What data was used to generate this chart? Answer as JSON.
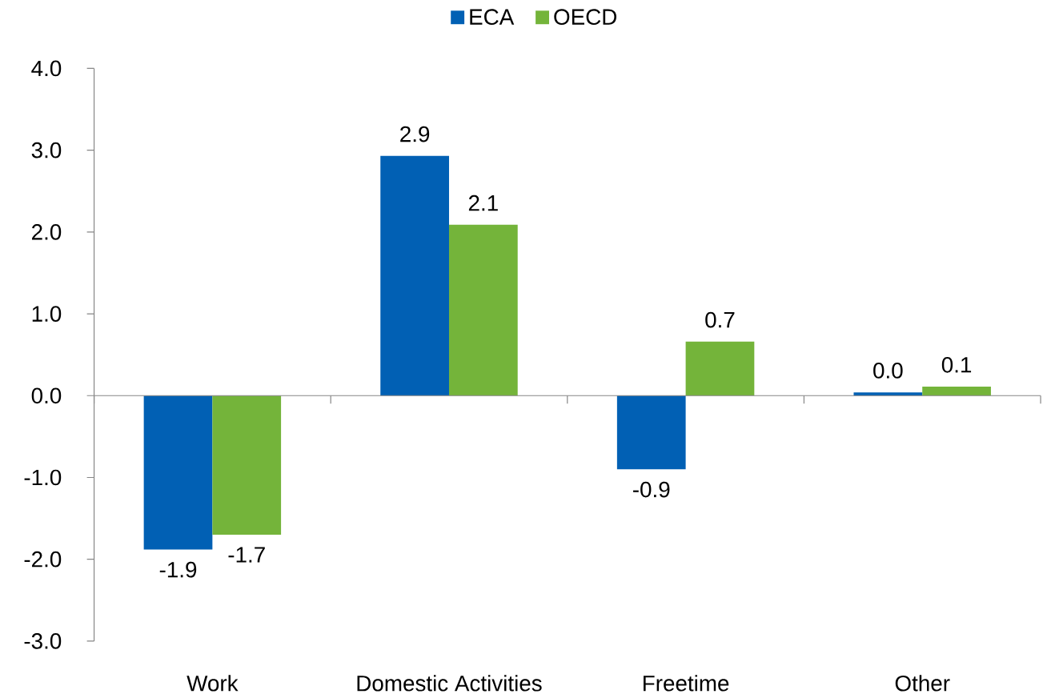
{
  "chart_data": {
    "type": "bar",
    "categories": [
      "Work",
      "Domestic Activities",
      "Freetime",
      "Other"
    ],
    "series": [
      {
        "name": "ECA",
        "color": "#0160b4",
        "values": [
          -1.88,
          2.93,
          -0.9,
          0.04
        ],
        "value_labels": [
          "-1.9",
          "2.9",
          "-0.9",
          "0.0"
        ]
      },
      {
        "name": "OECD",
        "color": "#74b43a",
        "values": [
          -1.7,
          2.09,
          0.66,
          0.11
        ],
        "value_labels": [
          "-1.7",
          "2.1",
          "0.7",
          "0.1"
        ]
      }
    ],
    "ylim": [
      -3,
      4
    ],
    "yticks": [
      {
        "value": -3,
        "label": "-3.0"
      },
      {
        "value": -2,
        "label": "-2.0"
      },
      {
        "value": -1,
        "label": "-1.0"
      },
      {
        "value": 0,
        "label": "0.0"
      },
      {
        "value": 1,
        "label": "1.0"
      },
      {
        "value": 2,
        "label": "2.0"
      },
      {
        "value": 3,
        "label": "3.0"
      },
      {
        "value": 4,
        "label": "4.0"
      }
    ],
    "legend": "top"
  }
}
